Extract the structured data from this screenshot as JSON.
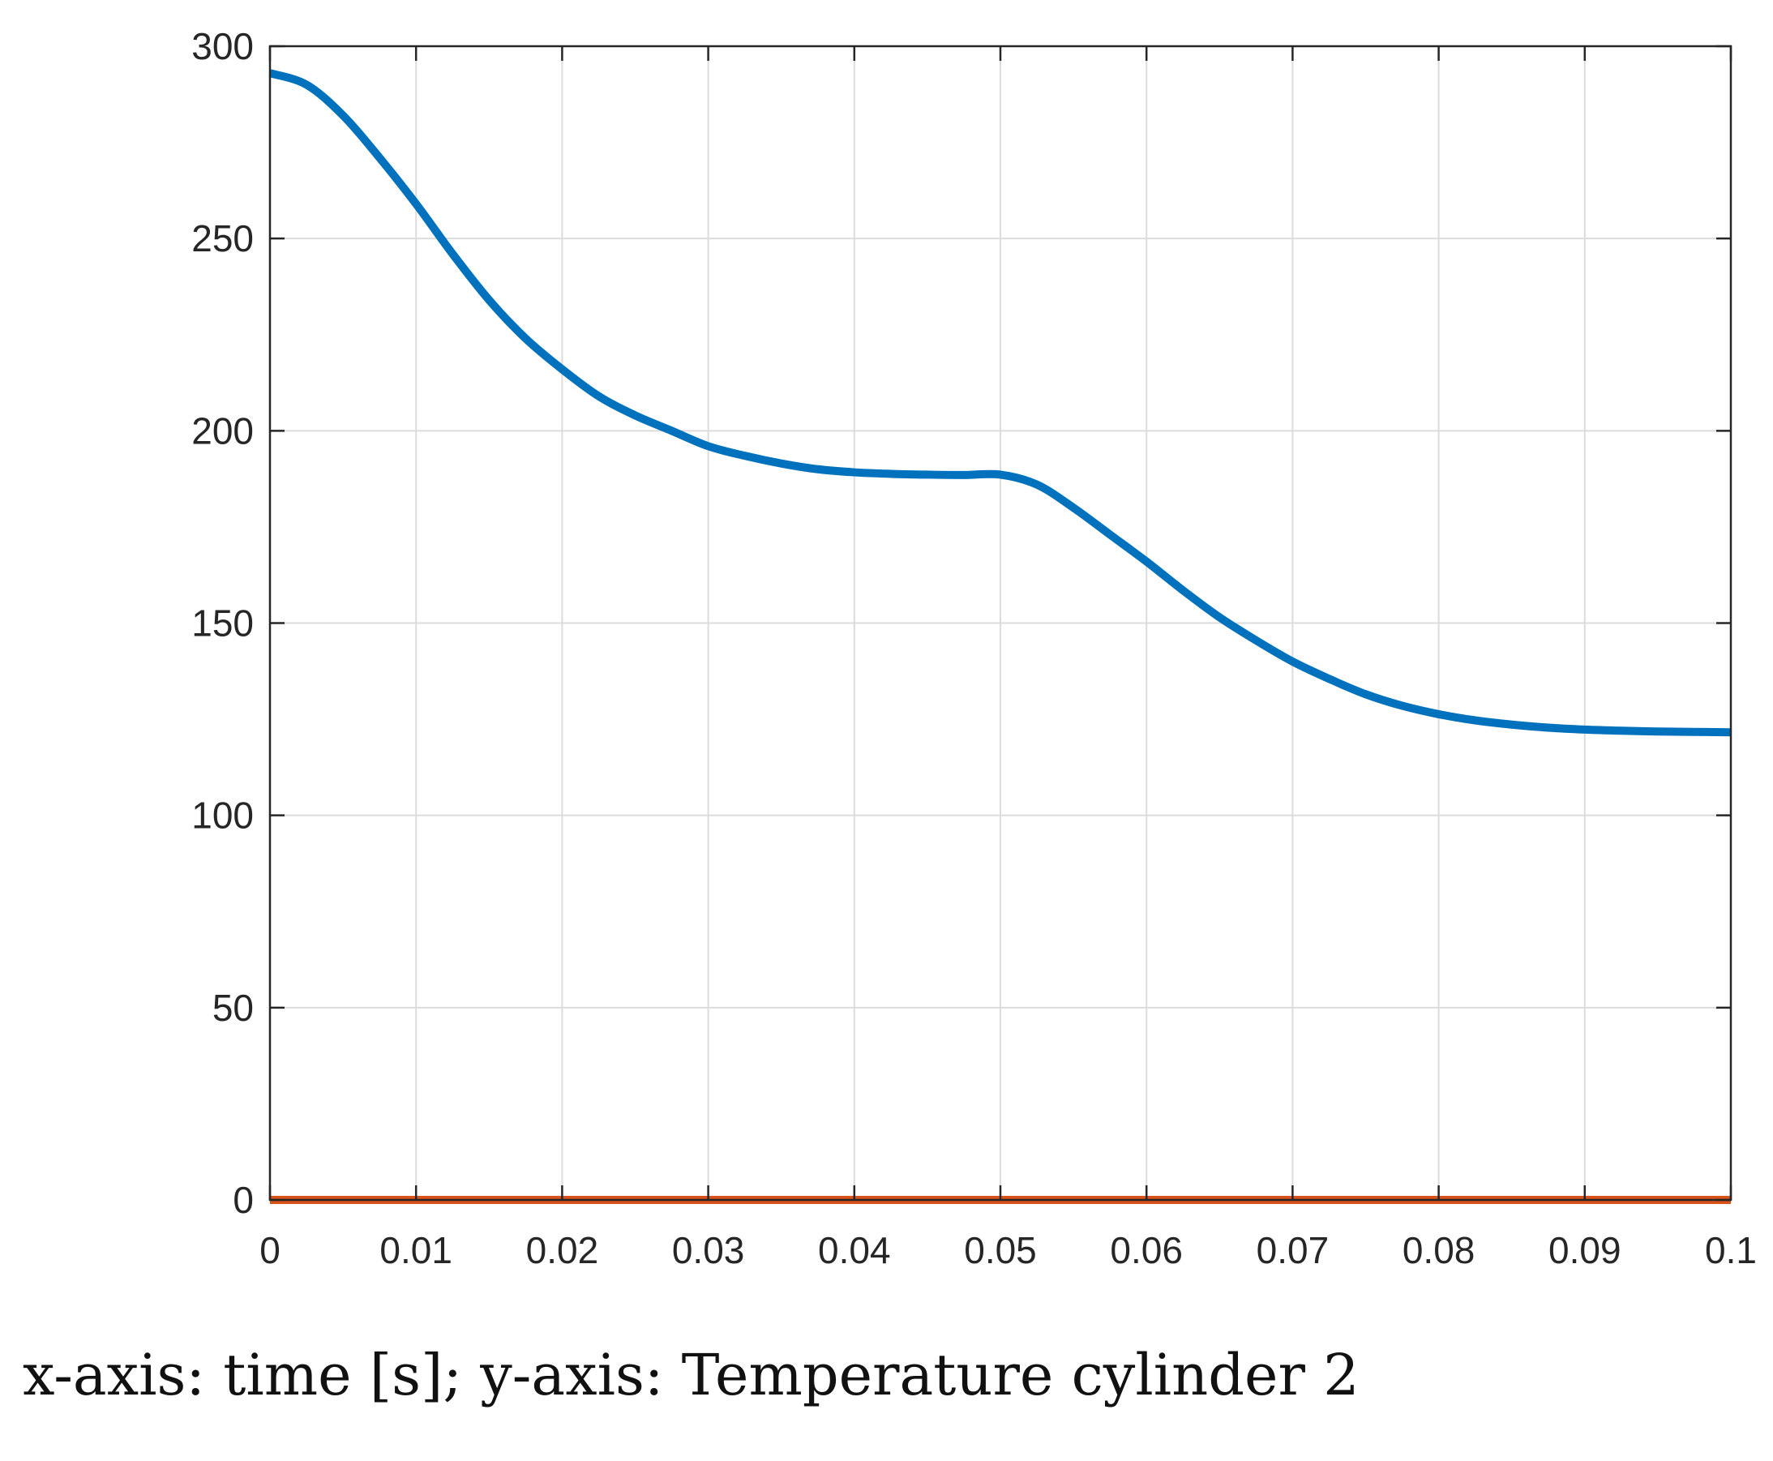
{
  "chart_data": {
    "type": "line",
    "title": "",
    "xlabel": "",
    "ylabel": "",
    "xlim": [
      0,
      0.1
    ],
    "ylim": [
      0,
      300
    ],
    "grid": true,
    "x_ticks": [
      0,
      0.01,
      0.02,
      0.03,
      0.04,
      0.05,
      0.06,
      0.07,
      0.08,
      0.09,
      0.1
    ],
    "x_tick_labels": [
      "0",
      "0.01",
      "0.02",
      "0.03",
      "0.04",
      "0.05",
      "0.06",
      "0.07",
      "0.08",
      "0.09",
      "0.1"
    ],
    "y_ticks": [
      0,
      50,
      100,
      150,
      200,
      250,
      300
    ],
    "y_tick_labels": [
      "0",
      "50",
      "100",
      "150",
      "200",
      "250",
      "300"
    ],
    "series": [
      {
        "name": "temperature-cylinder-2",
        "color": "#0072BD",
        "x": [
          0,
          0.0025,
          0.005,
          0.0075,
          0.01,
          0.0125,
          0.015,
          0.0175,
          0.02,
          0.0225,
          0.025,
          0.0275,
          0.03,
          0.0325,
          0.035,
          0.0375,
          0.04,
          0.0425,
          0.045,
          0.0475,
          0.05,
          0.0525,
          0.055,
          0.0575,
          0.06,
          0.0625,
          0.065,
          0.0675,
          0.07,
          0.0725,
          0.075,
          0.0775,
          0.08,
          0.0825,
          0.085,
          0.0875,
          0.09,
          0.0925,
          0.095,
          0.0975,
          0.1
        ],
        "y": [
          293,
          290,
          282,
          271,
          259,
          246,
          234,
          224,
          216,
          209,
          204,
          200,
          196,
          193.5,
          191.5,
          190,
          189.2,
          188.8,
          188.6,
          188.5,
          188.6,
          186,
          180,
          173,
          166,
          158.5,
          151.5,
          145.5,
          140,
          135.5,
          131.5,
          128.5,
          126.3,
          124.7,
          123.6,
          122.8,
          122.3,
          122,
          121.8,
          121.7,
          121.6
        ]
      },
      {
        "name": "zero-line",
        "color": "#D95319",
        "x": [
          0,
          0.1
        ],
        "y": [
          0,
          0
        ]
      }
    ]
  },
  "caption": "x-axis: time [s]; y-axis: Temperature cylinder 2"
}
